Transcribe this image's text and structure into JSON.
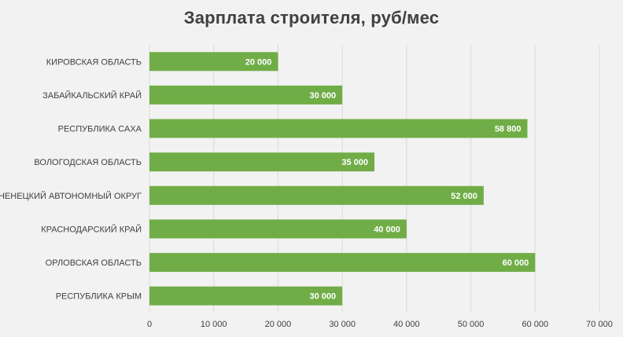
{
  "chart_data": {
    "type": "bar",
    "orientation": "horizontal",
    "title": "Зарплата строителя, руб/мес",
    "xlabel": "",
    "ylabel": "",
    "categories": [
      "КИРОВСКАЯ ОБЛАСТЬ",
      "ЗАБАЙКАЛЬСКИЙ КРАЙ",
      "РЕСПУБЛИКА САХА",
      "ВОЛОГОДСКАЯ ОБЛАСТЬ",
      "НЕНЕЦКИЙ АВТОНОМНЫЙ ОКРУГ",
      "КРАСНОДАРСКИЙ КРАЙ",
      "ОРЛОВСКАЯ ОБЛАСТЬ",
      "РЕСПУБЛИКА КРЫМ"
    ],
    "values": [
      20000,
      30000,
      58800,
      35000,
      52000,
      40000,
      60000,
      30000
    ],
    "data_labels": [
      "20 000",
      "30 000",
      "58 800",
      "35 000",
      "52 000",
      "40 000",
      "60 000",
      "30 000"
    ],
    "xlim": [
      0,
      70000
    ],
    "x_ticks": [
      0,
      10000,
      20000,
      30000,
      40000,
      50000,
      60000,
      70000
    ],
    "x_tick_labels": [
      "0",
      "10 000",
      "20 000",
      "30 000",
      "40 000",
      "50 000",
      "60 000",
      "70 000"
    ],
    "grid": "vertical",
    "legend": "none",
    "colors": {
      "bar": "#70ad47",
      "background": "#f2f2f2",
      "grid": "#d9d9d9",
      "text": "#404040",
      "data_label": "#ffffff"
    }
  }
}
